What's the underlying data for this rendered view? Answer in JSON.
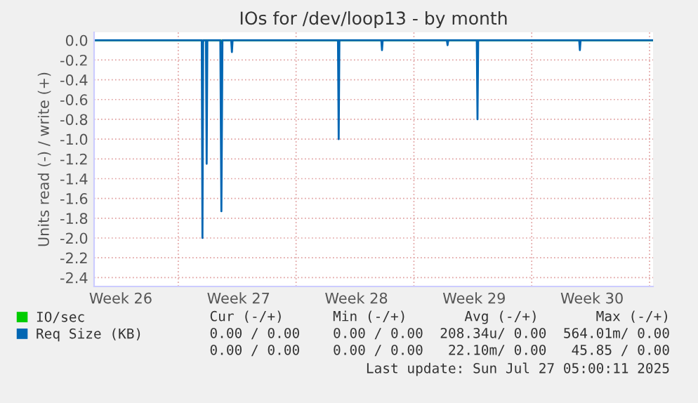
{
  "chart_data": {
    "type": "area",
    "title": "IOs for /dev/loop13 - by month",
    "ylabel": "Units read (-) / write (+)",
    "xlim": [
      "2025-06-25",
      "2025-07-28T05:00"
    ],
    "ylim": [
      -2.49,
      0.08
    ],
    "xticks": [
      {
        "value": "2025-06-26T14:00",
        "label": "Week 26"
      },
      {
        "value": "2025-06-30",
        "label": null
      },
      {
        "value": "2025-07-03T14:00",
        "label": "Week 27"
      },
      {
        "value": "2025-07-07",
        "label": null
      },
      {
        "value": "2025-07-10T14:00",
        "label": "Week 28"
      },
      {
        "value": "2025-07-14",
        "label": null
      },
      {
        "value": "2025-07-17T14:00",
        "label": "Week 29"
      },
      {
        "value": "2025-07-21",
        "label": null
      },
      {
        "value": "2025-07-24T14:00",
        "label": "Week 30"
      },
      {
        "value": "2025-07-28",
        "label": null
      }
    ],
    "yticks": [
      {
        "value": 0,
        "label": "0.0"
      },
      {
        "value": -0.2,
        "label": "-0.2"
      },
      {
        "value": -0.4,
        "label": "-0.4"
      },
      {
        "value": -0.6,
        "label": "-0.6"
      },
      {
        "value": -0.8,
        "label": "-0.8"
      },
      {
        "value": -1.0,
        "label": "-1.0"
      },
      {
        "value": -1.2,
        "label": "-1.2"
      },
      {
        "value": -1.4,
        "label": "-1.4"
      },
      {
        "value": -1.6,
        "label": "-1.6"
      },
      {
        "value": -1.8,
        "label": "-1.8"
      },
      {
        "value": -2.0,
        "label": "-2.0"
      },
      {
        "value": -2.2,
        "label": "-2.2"
      },
      {
        "value": -2.4,
        "label": "-2.4"
      }
    ],
    "grid": true,
    "legend": "bottom left",
    "series": [
      {
        "name": "IO/sec",
        "color": "#00cc00",
        "x": [
          "2025-06-25",
          "2025-07-01T09:00",
          "2025-07-01T10:30",
          "2025-07-01T12:00",
          "2025-07-02T12:00",
          "2025-07-02T13:30",
          "2025-07-02T15:00",
          "2025-07-28T05:00"
        ],
        "values": [
          0,
          0,
          -0.03,
          0,
          0,
          -0.03,
          0,
          0
        ]
      },
      {
        "name": "Req Size (KB)",
        "color": "#0066b3",
        "x": [
          "2025-06-25",
          "2025-07-01T09:30",
          "2025-07-01T10:30",
          "2025-07-01T11:30",
          "2025-07-01T15:30",
          "2025-07-01T16:30",
          "2025-07-01T17:30",
          "2025-07-02T12:00",
          "2025-07-02T13:30",
          "2025-07-02T15:00",
          "2025-07-03T03:30",
          "2025-07-03T04:30",
          "2025-07-03T05:30",
          "2025-07-09T11:45",
          "2025-07-09T12:45",
          "2025-07-09T13:45",
          "2025-07-12T01:30",
          "2025-07-12T02:30",
          "2025-07-12T03:30",
          "2025-07-15T23:00",
          "2025-07-16T00:00",
          "2025-07-16T01:00",
          "2025-07-17T17:40",
          "2025-07-17T18:40",
          "2025-07-17T19:40",
          "2025-07-23T19:40",
          "2025-07-23T20:40",
          "2025-07-23T21:40",
          "2025-07-28T05:00"
        ],
        "values": [
          0,
          0,
          -2.0,
          0,
          0,
          -1.25,
          0,
          0,
          -1.73,
          0,
          0,
          -0.12,
          0,
          0,
          -1.0,
          0,
          0,
          -0.1,
          0,
          0,
          -0.05,
          0,
          0,
          -0.8,
          0,
          0,
          -0.1,
          0,
          0
        ]
      }
    ],
    "annotations": [
      "Cur (-/+)      Min (-/+)       Avg (-/+)       Max (-/+)",
      "0.00 / 0.00    0.00 / 0.00  208.34u/ 0.00  564.01m/ 0.00",
      "0.00 / 0.00    0.00 / 0.00   22.10m/ 0.00   45.85 / 0.00",
      "Last update: Sun Jul 27 05:00:11 2025"
    ]
  }
}
